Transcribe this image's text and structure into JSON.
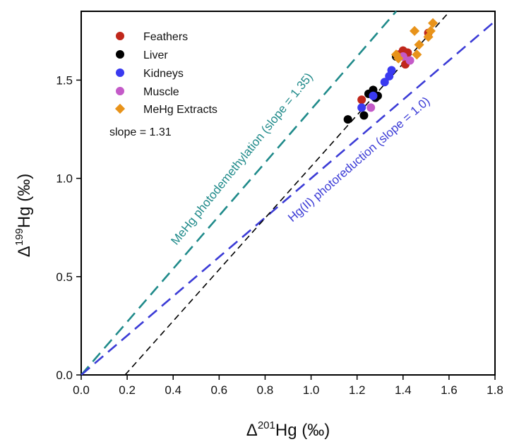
{
  "chart_data": {
    "type": "scatter",
    "title": "",
    "xlabel": {
      "prefix": "Δ",
      "sup": "201",
      "main": "Hg (‰)"
    },
    "ylabel": {
      "prefix": "Δ",
      "sup": "199",
      "main": "Hg (‰)"
    },
    "xlim": [
      0,
      1.8
    ],
    "ylim": [
      0,
      1.85
    ],
    "xticks": [
      "0.0",
      "0.2",
      "0.4",
      "0.6",
      "0.8",
      "1.0",
      "1.2",
      "1.4",
      "1.6",
      "1.8"
    ],
    "xtick_values": [
      0,
      0.2,
      0.4,
      0.6,
      0.8,
      1.0,
      1.2,
      1.4,
      1.6,
      1.8
    ],
    "yticks": [
      "0.0",
      "0.5",
      "1.0",
      "1.5"
    ],
    "ytick_values": [
      0,
      0.5,
      1.0,
      1.5
    ],
    "grid": false,
    "legend_position": "top-left",
    "series": [
      {
        "name": "Feathers",
        "marker": "circle",
        "color": "#c0271b",
        "x": [
          1.22,
          1.38,
          1.4,
          1.41,
          1.42,
          1.51
        ],
        "y": [
          1.4,
          1.63,
          1.65,
          1.58,
          1.64,
          1.74
        ]
      },
      {
        "name": "Liver",
        "marker": "circle",
        "color": "#000000",
        "x": [
          1.16,
          1.23,
          1.25,
          1.27,
          1.28,
          1.29,
          1.37
        ],
        "y": [
          1.3,
          1.32,
          1.43,
          1.45,
          1.41,
          1.42,
          1.62
        ]
      },
      {
        "name": "Kidneys",
        "marker": "circle",
        "color": "#3a3af0",
        "x": [
          1.22,
          1.27,
          1.32,
          1.34,
          1.35
        ],
        "y": [
          1.36,
          1.42,
          1.49,
          1.52,
          1.55
        ]
      },
      {
        "name": "Muscle",
        "marker": "circle",
        "color": "#c45ac8",
        "x": [
          1.26,
          1.4,
          1.43
        ],
        "y": [
          1.36,
          1.62,
          1.6
        ]
      },
      {
        "name": "MeHg Extracts",
        "marker": "diamond",
        "color": "#e8931a",
        "x": [
          1.37,
          1.38,
          1.45,
          1.46,
          1.47,
          1.51,
          1.52,
          1.53
        ],
        "y": [
          1.63,
          1.61,
          1.75,
          1.63,
          1.68,
          1.72,
          1.75,
          1.79
        ]
      }
    ],
    "lines": [
      {
        "name": "meHg-photodemethylation",
        "label": "MeHg photodemethylation (slope = 1.35)",
        "color": "#1f8a8a",
        "dash": "dashed",
        "slope": 1.35,
        "intercept": 0
      },
      {
        "name": "hg-photoreduction",
        "label": "Hg(II) photoreduction (slope = 1.0)",
        "color": "#3b3bd6",
        "dash": "dashed",
        "slope": 1.0,
        "intercept": 0
      },
      {
        "name": "regression-fit",
        "label": "slope = 1.31",
        "color": "#000000",
        "dash": "dashed",
        "slope": 1.31,
        "intercept": -0.25
      }
    ]
  }
}
